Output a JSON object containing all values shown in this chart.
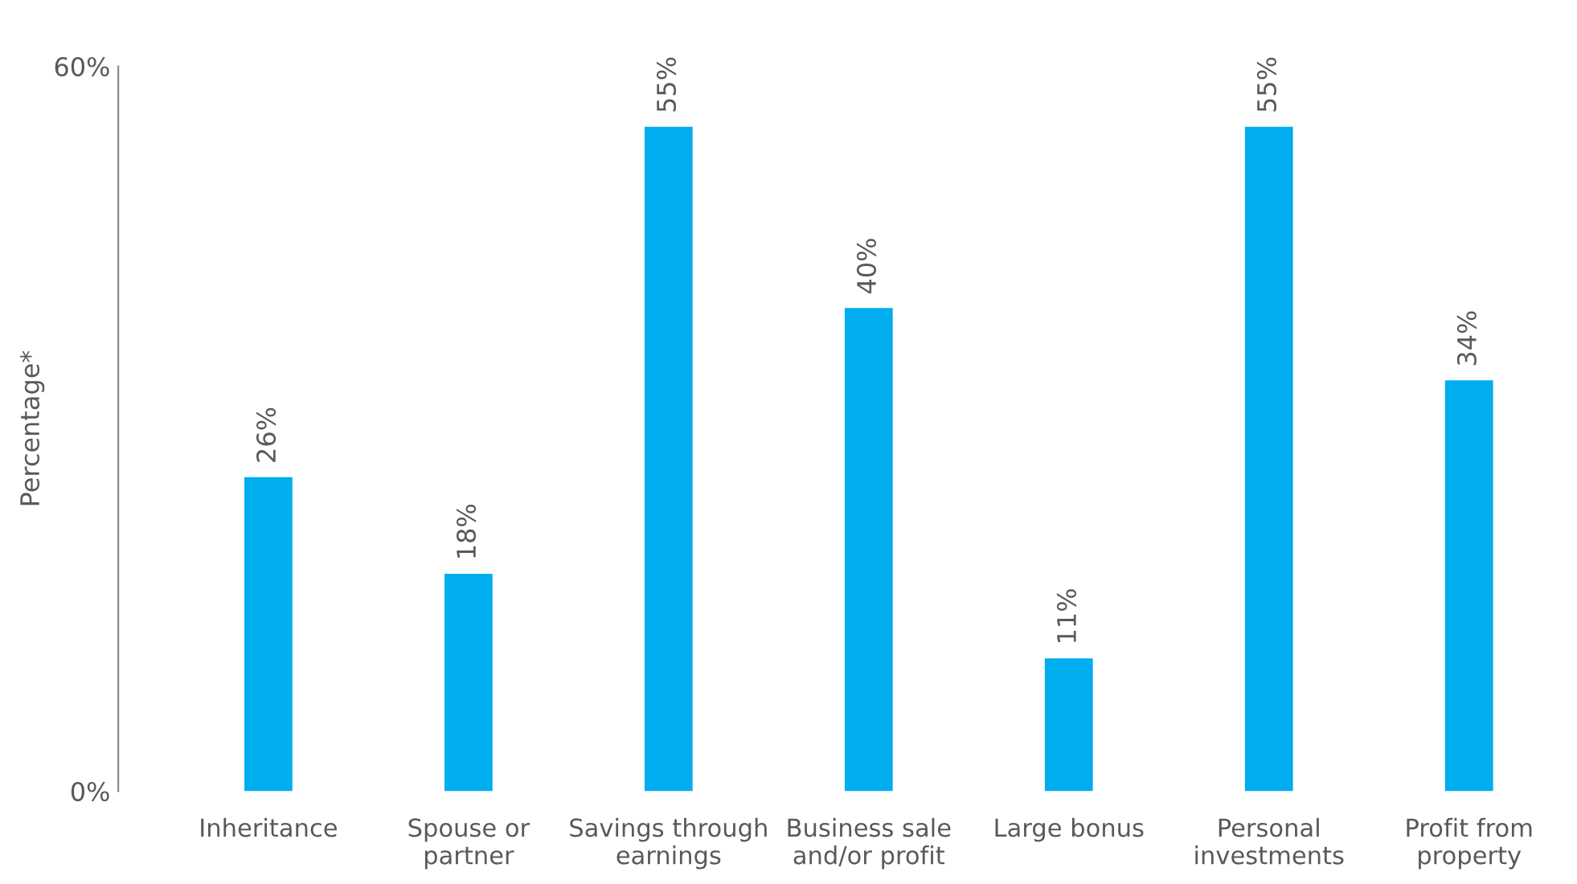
{
  "chart_data": {
    "type": "bar",
    "ylabel": "Percentage*",
    "categories": [
      "Inheritance",
      "Spouse or\npartner",
      "Savings through\nearnings",
      "Business sale\nand/or profit",
      "Large bonus",
      "Personal\ninvestments",
      "Profit from\nproperty"
    ],
    "values": [
      26,
      18,
      55,
      40,
      11,
      55,
      34
    ],
    "value_labels": [
      "26%",
      "18%",
      "55%",
      "40%",
      "11%",
      "55%",
      "34%"
    ],
    "color": "#00adef",
    "ylim": [
      0,
      60
    ],
    "yticks": [
      {
        "value": 0,
        "label": "0%"
      },
      {
        "value": 60,
        "label": "60%"
      }
    ],
    "grid": false
  }
}
